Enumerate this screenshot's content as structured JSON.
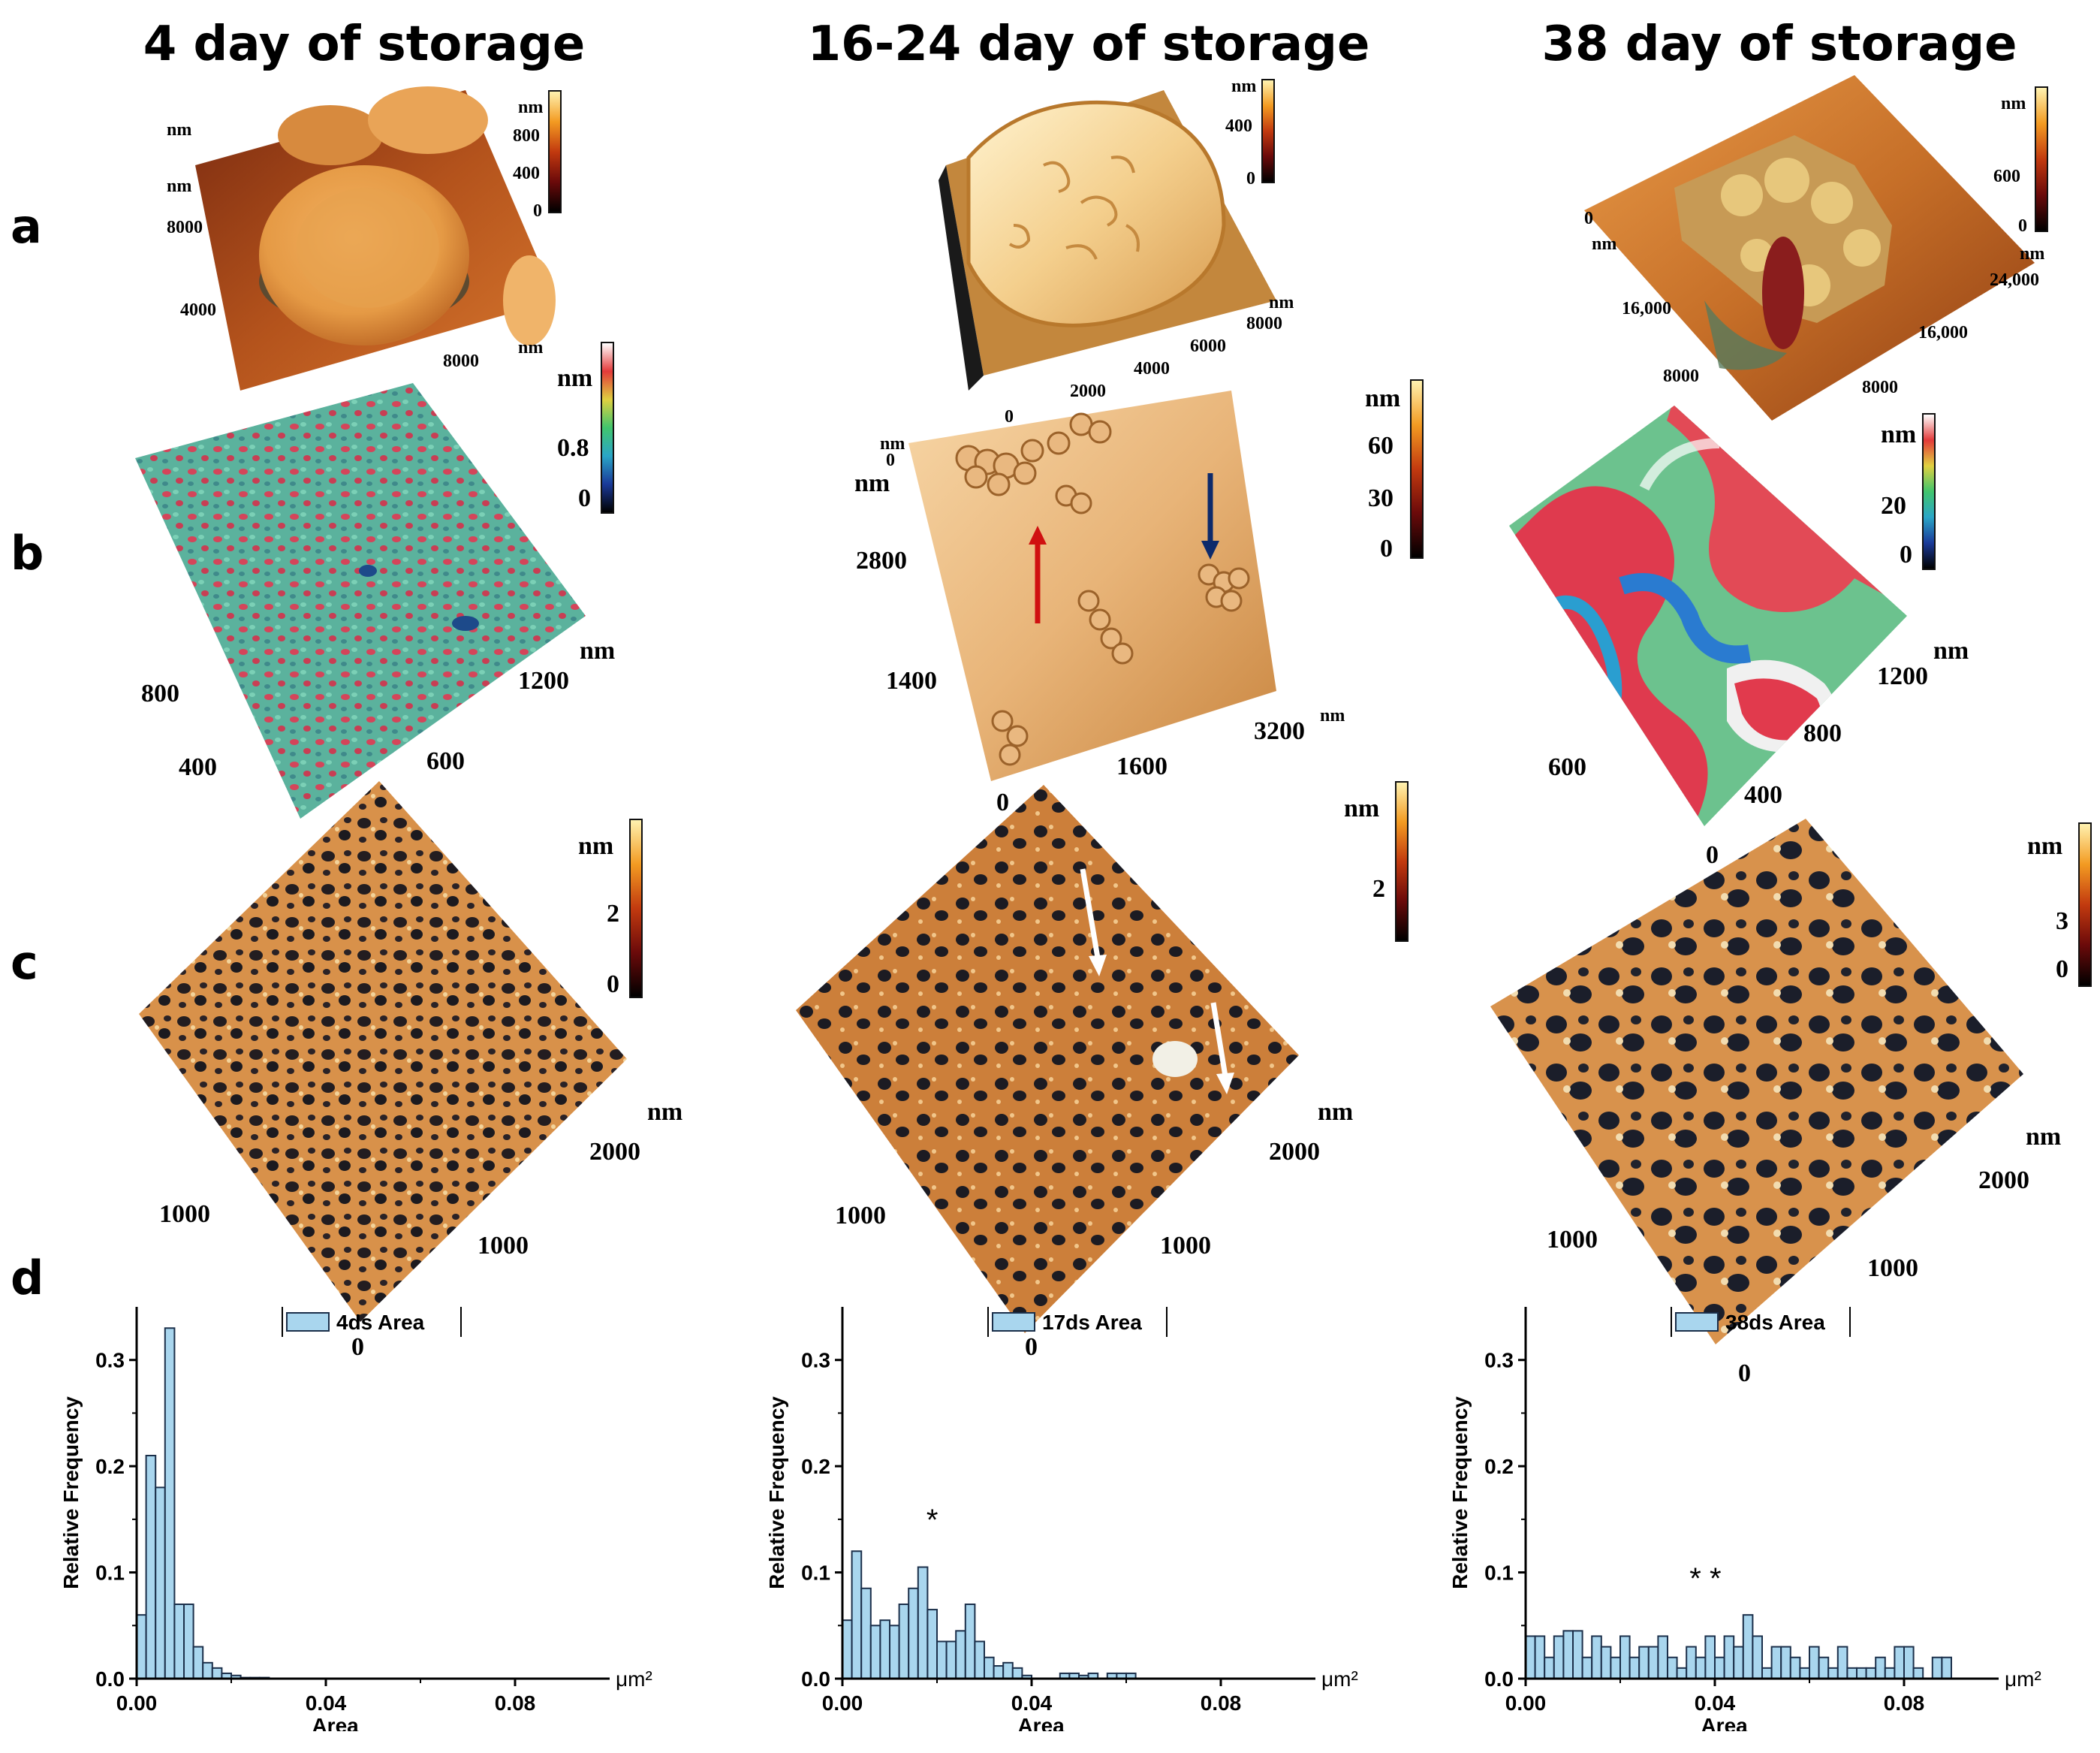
{
  "columns": [
    "4 day of storage",
    "16-24 day of storage",
    "38 day of storage"
  ],
  "row_labels": [
    "a",
    "b",
    "c",
    "d"
  ],
  "unit_nm": "nm",
  "panel_a": {
    "col1": {
      "colorbar": [
        "nm",
        "800",
        "400",
        "0"
      ],
      "axis": [
        "nm",
        "nm",
        "8000",
        "4000",
        "8000",
        "nm"
      ]
    },
    "col2": {
      "colorbar": [
        "nm",
        "400",
        "0"
      ],
      "axis": [
        "nm",
        "8000",
        "6000",
        "4000",
        "2000",
        "0"
      ]
    },
    "col3": {
      "colorbar": [
        "nm",
        "600",
        "0"
      ],
      "axis": [
        "0",
        "nm",
        "16,000",
        "8000",
        "nm",
        "24,000",
        "16,000",
        "8000"
      ]
    }
  },
  "panel_b": {
    "col1": {
      "colorbar": [
        "nm",
        "0.8",
        "0"
      ],
      "axis": [
        "nm",
        "1200",
        "800",
        "600",
        "400"
      ]
    },
    "col2": {
      "colorbar": [
        "nm",
        "60",
        "30",
        "0"
      ],
      "axis": [
        "nm",
        "0",
        "nm",
        "2800",
        "1400",
        "0",
        "1600",
        "3200",
        "nm"
      ]
    },
    "col3": {
      "colorbar": [
        "nm",
        "20",
        "0"
      ],
      "axis": [
        "nm",
        "1200",
        "800",
        "600",
        "400",
        "0"
      ]
    }
  },
  "panel_c": {
    "col1": {
      "colorbar": [
        "nm",
        "2",
        "0"
      ],
      "axis": [
        "nm",
        "2000",
        "1000",
        "1000",
        "0"
      ]
    },
    "col2": {
      "colorbar": [
        "nm",
        "2"
      ],
      "axis": [
        "nm",
        "2000",
        "1000",
        "1000",
        "0"
      ]
    },
    "col3": {
      "colorbar": [
        "nm",
        "3",
        "0"
      ],
      "axis": [
        "nm",
        "2000",
        "1000",
        "1000",
        "0"
      ]
    }
  },
  "colors": {
    "bar_fill": "#a9d6ee",
    "bar_edge": "#1b2f4a",
    "red_arrow": "#d01010",
    "blue_arrow": "#0d2a6b"
  },
  "chart_data": [
    {
      "type": "bar",
      "legend": "4ds Area",
      "xlabel": "Area",
      "ylabel": "Relative Frequency",
      "unit": "μm²",
      "xlim": [
        0,
        0.1
      ],
      "ylim": [
        0,
        0.35
      ],
      "xticks": [
        "0.00",
        "0.04",
        "0.08"
      ],
      "yticks": [
        "0.0",
        "0.1",
        "0.2",
        "0.3"
      ],
      "bin_width": 0.002,
      "x": [
        0.001,
        0.003,
        0.005,
        0.007,
        0.009,
        0.011,
        0.013,
        0.015,
        0.017,
        0.019,
        0.021,
        0.023,
        0.025,
        0.027
      ],
      "values": [
        0.06,
        0.21,
        0.18,
        0.33,
        0.07,
        0.07,
        0.03,
        0.015,
        0.01,
        0.005,
        0.003,
        0.001,
        0.001,
        0.001
      ],
      "annotation": ""
    },
    {
      "type": "bar",
      "legend": "17ds Area",
      "xlabel": "Area",
      "ylabel": "Relative Frequency",
      "unit": "μm²",
      "xlim": [
        0,
        0.1
      ],
      "ylim": [
        0,
        0.35
      ],
      "xticks": [
        "0.00",
        "0.04",
        "0.08"
      ],
      "yticks": [
        "0.0",
        "0.1",
        "0.2",
        "0.3"
      ],
      "bin_width": 0.002,
      "x": [
        0.001,
        0.003,
        0.005,
        0.007,
        0.009,
        0.011,
        0.013,
        0.015,
        0.017,
        0.019,
        0.021,
        0.023,
        0.025,
        0.027,
        0.029,
        0.031,
        0.033,
        0.035,
        0.037,
        0.039,
        0.047,
        0.049,
        0.051,
        0.053,
        0.057,
        0.059,
        0.061
      ],
      "values": [
        0.055,
        0.12,
        0.085,
        0.05,
        0.055,
        0.05,
        0.07,
        0.085,
        0.105,
        0.065,
        0.035,
        0.035,
        0.045,
        0.07,
        0.035,
        0.02,
        0.012,
        0.015,
        0.01,
        0.003,
        0.005,
        0.005,
        0.003,
        0.005,
        0.005,
        0.005,
        0.005
      ],
      "annotation": "*"
    },
    {
      "type": "bar",
      "legend": "38ds Area",
      "xlabel": "Area",
      "ylabel": "Relative Frequency",
      "unit": "μm²",
      "xlim": [
        0,
        0.1
      ],
      "ylim": [
        0,
        0.35
      ],
      "xticks": [
        "0.00",
        "0.04",
        "0.08"
      ],
      "yticks": [
        "0.0",
        "0.1",
        "0.2",
        "0.3"
      ],
      "bin_width": 0.002,
      "x": [
        0.001,
        0.003,
        0.005,
        0.007,
        0.009,
        0.011,
        0.013,
        0.015,
        0.017,
        0.019,
        0.021,
        0.023,
        0.025,
        0.027,
        0.029,
        0.031,
        0.033,
        0.035,
        0.037,
        0.039,
        0.041,
        0.043,
        0.045,
        0.047,
        0.049,
        0.051,
        0.053,
        0.055,
        0.057,
        0.059,
        0.061,
        0.063,
        0.065,
        0.067,
        0.069,
        0.071,
        0.073,
        0.075,
        0.077,
        0.079,
        0.081,
        0.083,
        0.087,
        0.089
      ],
      "values": [
        0.04,
        0.04,
        0.02,
        0.04,
        0.045,
        0.045,
        0.02,
        0.04,
        0.03,
        0.02,
        0.04,
        0.02,
        0.03,
        0.03,
        0.04,
        0.02,
        0.01,
        0.03,
        0.02,
        0.04,
        0.02,
        0.04,
        0.03,
        0.06,
        0.04,
        0.01,
        0.03,
        0.03,
        0.02,
        0.01,
        0.03,
        0.02,
        0.01,
        0.03,
        0.01,
        0.01,
        0.01,
        0.02,
        0.01,
        0.03,
        0.03,
        0.01,
        0.02,
        0.02
      ],
      "annotation": "* *"
    }
  ]
}
